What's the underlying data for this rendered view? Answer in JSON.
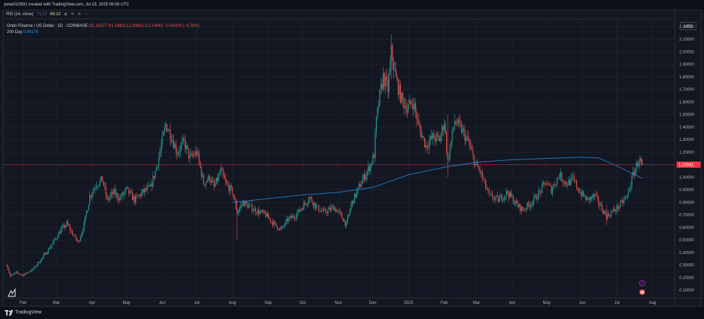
{
  "header": {
    "created_line": "petar010591 created with TradingView.com, Jul 23, 2025 09:06 UTC"
  },
  "indicator": {
    "name": "RSI (14, close)",
    "value1": "71.17",
    "value2": "69.12",
    "icons": [
      "eye-icon",
      "settings-icon",
      "delete-icon",
      "more-icon"
    ]
  },
  "legend": {
    "symbol": "Ondo Finance / US Dollar · 1D · COINBASE",
    "ohlc": "O1.14377  H1.14811  L1.09611  C1.10042  −0.04324 (−3.78%)",
    "ma_label": "200 Day",
    "ma_value": "0.99176"
  },
  "currency": "USD",
  "footer": {
    "brand": "TradingView"
  },
  "colors": {
    "background": "#131722",
    "up": "#26a69a",
    "down": "#ef5350",
    "ma": "#2196f3",
    "price_label": "#f23645",
    "grid": "#1e222d",
    "axis_text": "#b2b5be"
  },
  "chart_data": {
    "type": "candlestick",
    "symbol": "ONDO/USD",
    "interval": "1D",
    "exchange": "COINBASE",
    "grid": true,
    "last_price": 1.10042,
    "last_price_label": "1.10042",
    "y_axis": {
      "range": [
        0.04,
        2.26
      ],
      "ticks": [
        "0.10000",
        "0.20000",
        "0.30000",
        "0.40000",
        "0.50000",
        "0.60000",
        "0.70000",
        "0.80000",
        "0.90000",
        "1.00000",
        "1.10000",
        "1.20000",
        "1.30000",
        "1.40000",
        "1.50000",
        "1.60000",
        "1.70000",
        "1.80000",
        "1.90000",
        "2.00000",
        "2.10000",
        "2.20000"
      ]
    },
    "x_axis": {
      "range": [
        "2024-01-15",
        "2025-08-20"
      ],
      "ticks": [
        {
          "label": "Feb",
          "date": "2024-02-01"
        },
        {
          "label": "Mar",
          "date": "2024-03-01"
        },
        {
          "label": "Apr",
          "date": "2024-04-01"
        },
        {
          "label": "May",
          "date": "2024-05-01"
        },
        {
          "label": "Jun",
          "date": "2024-06-01"
        },
        {
          "label": "Jul",
          "date": "2024-07-01"
        },
        {
          "label": "Aug",
          "date": "2024-08-01"
        },
        {
          "label": "Sep",
          "date": "2024-09-01"
        },
        {
          "label": "Oct",
          "date": "2024-10-01"
        },
        {
          "label": "Nov",
          "date": "2024-11-01"
        },
        {
          "label": "Dec",
          "date": "2024-12-01"
        },
        {
          "label": "2025",
          "date": "2025-01-01"
        },
        {
          "label": "Feb",
          "date": "2025-02-01"
        },
        {
          "label": "Mar",
          "date": "2025-03-01"
        },
        {
          "label": "Apr",
          "date": "2025-04-01"
        },
        {
          "label": "May",
          "date": "2025-05-01"
        },
        {
          "label": "Jun",
          "date": "2025-06-01"
        },
        {
          "label": "Jul",
          "date": "2025-07-01"
        },
        {
          "label": "Aug",
          "date": "2025-08-01"
        }
      ]
    },
    "price_path": [
      [
        "2024-01-18",
        0.3
      ],
      [
        "2024-01-21",
        0.21
      ],
      [
        "2024-01-26",
        0.24
      ],
      [
        "2024-02-01",
        0.22
      ],
      [
        "2024-02-10",
        0.27
      ],
      [
        "2024-02-18",
        0.36
      ],
      [
        "2024-02-25",
        0.45
      ],
      [
        "2024-03-05",
        0.58
      ],
      [
        "2024-03-10",
        0.63
      ],
      [
        "2024-03-15",
        0.55
      ],
      [
        "2024-03-20",
        0.48
      ],
      [
        "2024-03-25",
        0.62
      ],
      [
        "2024-03-30",
        0.85
      ],
      [
        "2024-04-05",
        0.95
      ],
      [
        "2024-04-10",
        0.98
      ],
      [
        "2024-04-14",
        0.82
      ],
      [
        "2024-04-20",
        0.88
      ],
      [
        "2024-04-25",
        0.83
      ],
      [
        "2024-05-01",
        0.9
      ],
      [
        "2024-05-08",
        0.82
      ],
      [
        "2024-05-15",
        0.88
      ],
      [
        "2024-05-22",
        0.92
      ],
      [
        "2024-05-26",
        1.05
      ],
      [
        "2024-05-30",
        1.2
      ],
      [
        "2024-06-04",
        1.42
      ],
      [
        "2024-06-08",
        1.35
      ],
      [
        "2024-06-14",
        1.2
      ],
      [
        "2024-06-20",
        1.28
      ],
      [
        "2024-06-25",
        1.15
      ],
      [
        "2024-07-01",
        1.2
      ],
      [
        "2024-07-07",
        0.95
      ],
      [
        "2024-07-12",
        1.0
      ],
      [
        "2024-07-16",
        0.92
      ],
      [
        "2024-07-22",
        1.05
      ],
      [
        "2024-07-26",
        0.95
      ],
      [
        "2024-08-01",
        0.88
      ],
      [
        "2024-08-05",
        0.72
      ],
      [
        "2024-08-10",
        0.8
      ],
      [
        "2024-08-20",
        0.74
      ],
      [
        "2024-08-30",
        0.7
      ],
      [
        "2024-09-06",
        0.63
      ],
      [
        "2024-09-12",
        0.58
      ],
      [
        "2024-09-18",
        0.66
      ],
      [
        "2024-09-25",
        0.7
      ],
      [
        "2024-10-02",
        0.78
      ],
      [
        "2024-10-07",
        0.84
      ],
      [
        "2024-10-14",
        0.75
      ],
      [
        "2024-10-20",
        0.72
      ],
      [
        "2024-10-28",
        0.76
      ],
      [
        "2024-11-03",
        0.7
      ],
      [
        "2024-11-08",
        0.62
      ],
      [
        "2024-11-12",
        0.78
      ],
      [
        "2024-11-16",
        0.86
      ],
      [
        "2024-11-22",
        0.98
      ],
      [
        "2024-11-28",
        1.08
      ],
      [
        "2024-12-02",
        1.18
      ],
      [
        "2024-12-04",
        1.45
      ],
      [
        "2024-12-07",
        1.65
      ],
      [
        "2024-12-10",
        1.8
      ],
      [
        "2024-12-14",
        1.7
      ],
      [
        "2024-12-17",
        2.0
      ],
      [
        "2024-12-21",
        1.78
      ],
      [
        "2024-12-26",
        1.62
      ],
      [
        "2024-12-31",
        1.55
      ],
      [
        "2025-01-05",
        1.6
      ],
      [
        "2025-01-10",
        1.4
      ],
      [
        "2025-01-16",
        1.25
      ],
      [
        "2025-01-22",
        1.32
      ],
      [
        "2025-01-28",
        1.3
      ],
      [
        "2025-02-01",
        1.45
      ],
      [
        "2025-02-04",
        1.12
      ],
      [
        "2025-02-10",
        1.45
      ],
      [
        "2025-02-16",
        1.38
      ],
      [
        "2025-02-22",
        1.28
      ],
      [
        "2025-02-28",
        1.1
      ],
      [
        "2025-03-04",
        1.05
      ],
      [
        "2025-03-08",
        0.95
      ],
      [
        "2025-03-12",
        0.85
      ],
      [
        "2025-03-20",
        0.82
      ],
      [
        "2025-03-28",
        0.88
      ],
      [
        "2025-04-05",
        0.78
      ],
      [
        "2025-04-10",
        0.74
      ],
      [
        "2025-04-18",
        0.8
      ],
      [
        "2025-04-25",
        0.88
      ],
      [
        "2025-04-30",
        0.96
      ],
      [
        "2025-05-05",
        0.9
      ],
      [
        "2025-05-12",
        1.02
      ],
      [
        "2025-05-18",
        0.95
      ],
      [
        "2025-05-24",
        0.98
      ],
      [
        "2025-05-30",
        0.88
      ],
      [
        "2025-06-05",
        0.82
      ],
      [
        "2025-06-12",
        0.85
      ],
      [
        "2025-06-18",
        0.75
      ],
      [
        "2025-06-22",
        0.69
      ],
      [
        "2025-06-28",
        0.73
      ],
      [
        "2025-07-04",
        0.78
      ],
      [
        "2025-07-10",
        0.85
      ],
      [
        "2025-07-15",
        1.02
      ],
      [
        "2025-07-20",
        1.14
      ],
      [
        "2025-07-23",
        1.1
      ]
    ],
    "ma_200": [
      [
        "2024-08-01",
        0.8
      ],
      [
        "2024-09-01",
        0.83
      ],
      [
        "2024-10-01",
        0.86
      ],
      [
        "2024-11-01",
        0.88
      ],
      [
        "2024-12-01",
        0.92
      ],
      [
        "2025-01-01",
        1.02
      ],
      [
        "2025-02-01",
        1.08
      ],
      [
        "2025-03-01",
        1.12
      ],
      [
        "2025-04-01",
        1.14
      ],
      [
        "2025-05-01",
        1.15
      ],
      [
        "2025-06-01",
        1.16
      ],
      [
        "2025-06-15",
        1.155
      ],
      [
        "2025-07-01",
        1.09
      ],
      [
        "2025-07-23",
        0.99176
      ]
    ]
  }
}
